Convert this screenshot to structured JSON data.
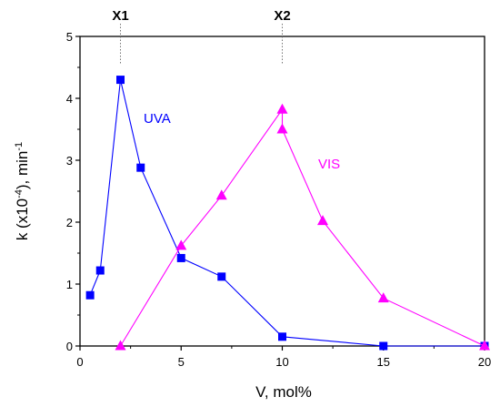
{
  "chart_data": {
    "type": "line",
    "xlabel": "V, mol%",
    "ylabel_main": "k (x10",
    "ylabel_exp": "-4",
    "ylabel_tail": "), min",
    "ylabel_unit_exp": "-1",
    "xlim": [
      0,
      20
    ],
    "ylim": [
      0,
      5
    ],
    "x_ticks": [
      "0",
      "5",
      "10",
      "15",
      "20"
    ],
    "y_ticks": [
      "0",
      "1",
      "2",
      "3",
      "4",
      "5"
    ],
    "grid": false,
    "markers": [
      {
        "label": "X1",
        "x": 2
      },
      {
        "label": "X2",
        "x": 10
      }
    ],
    "series": [
      {
        "name": "UVA",
        "color": "#0000ff",
        "marker": "square",
        "x": [
          0.5,
          1,
          2,
          3,
          5,
          7,
          10,
          15,
          20
        ],
        "y": [
          0.82,
          1.22,
          4.3,
          2.88,
          1.42,
          1.12,
          0.15,
          0.0,
          0.0
        ]
      },
      {
        "name": "VIS",
        "color": "#ff00ff",
        "marker": "triangle",
        "x": [
          2,
          5,
          7,
          10,
          10,
          12,
          15,
          20
        ],
        "y": [
          0.0,
          1.62,
          2.43,
          3.82,
          3.5,
          2.02,
          0.77,
          0.0
        ]
      }
    ]
  }
}
